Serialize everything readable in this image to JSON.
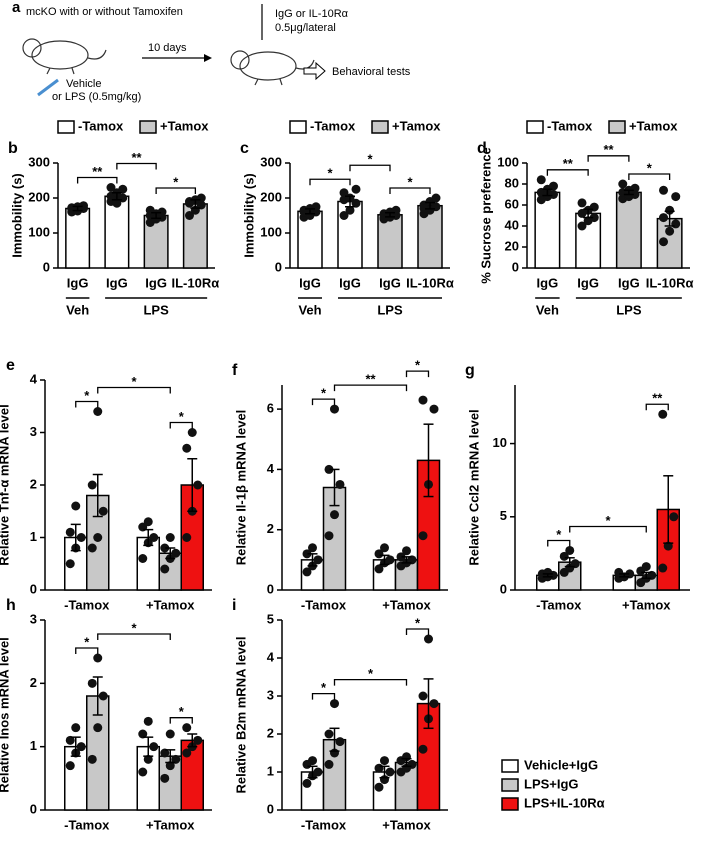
{
  "scheme": {
    "cohort": "mcKO with or without Tamoxifen",
    "treatment_1": "Vehicle",
    "treatment_2": "or LPS (0.5mg/kg)",
    "interval": "10 days",
    "injection_1": "IgG or IL-10Rα",
    "injection_2": "0.5μg/lateral",
    "outcome": "Behavioral tests"
  },
  "chart_data": [
    {
      "type": "bar",
      "label": "b",
      "ylabel": "Immobility (s)",
      "ylim": [
        0,
        300
      ],
      "yticks": [
        0,
        100,
        200,
        300
      ],
      "categories": [
        "IgG",
        "IgG",
        "IgG",
        "IL-10Rα"
      ],
      "group_labels": [
        "Veh",
        "LPS"
      ],
      "series": [
        {
          "name": "-Tamox",
          "color": "#ffffff",
          "values": [
            170,
            205,
            null,
            null
          ],
          "errors": [
            6,
            10,
            null,
            null
          ],
          "points": [
            [
              160,
              165,
              170,
              172,
              175,
              178,
              168,
              163
            ],
            [
              190,
              195,
              200,
              205,
              215,
              225,
              230,
              185
            ],
            null,
            null
          ]
        },
        {
          "name": "+Tamox",
          "color": "#c8c8c8",
          "values": [
            null,
            null,
            150,
            183
          ],
          "errors": [
            null,
            null,
            8,
            12
          ],
          "points": [
            null,
            null,
            [
              130,
              140,
              145,
              150,
              155,
              160,
              165,
              140
            ],
            [
              150,
              165,
              180,
              185,
              195,
              200,
              190
            ]
          ]
        }
      ],
      "significance": [
        {
          "from": 0,
          "to": 1,
          "label": "**"
        },
        {
          "from": 1,
          "to": 2,
          "label": "**"
        },
        {
          "from": 2,
          "to": 3,
          "label": "*"
        }
      ]
    },
    {
      "type": "bar",
      "label": "c",
      "ylabel": "Immobility (s)",
      "ylim": [
        0,
        300
      ],
      "yticks": [
        0,
        100,
        200,
        300
      ],
      "categories": [
        "IgG",
        "IgG",
        "IgG",
        "IL-10Rα"
      ],
      "group_labels": [
        "Veh",
        "LPS"
      ],
      "series": [
        {
          "name": "-Tamox",
          "color": "#ffffff",
          "values": [
            162,
            190,
            null,
            null
          ],
          "errors": [
            7,
            15,
            null,
            null
          ],
          "points": [
            [
              145,
              150,
              160,
              165,
              170,
              175,
              160
            ],
            [
              150,
              165,
              185,
              195,
              200,
              225,
              215
            ],
            null,
            null
          ]
        },
        {
          "name": "+Tamox",
          "color": "#c8c8c8",
          "values": [
            null,
            null,
            152,
            178
          ],
          "errors": [
            null,
            null,
            6,
            9
          ],
          "points": [
            null,
            null,
            [
              140,
              145,
              150,
              155,
              160,
              165,
              145
            ],
            [
              155,
              165,
              175,
              180,
              190,
              200,
              170
            ]
          ]
        }
      ],
      "significance": [
        {
          "from": 0,
          "to": 1,
          "label": "*"
        },
        {
          "from": 1,
          "to": 2,
          "label": "*"
        },
        {
          "from": 2,
          "to": 3,
          "label": "*"
        }
      ]
    },
    {
      "type": "bar",
      "label": "d",
      "ylabel": "% Sucrose preference",
      "ylim": [
        0,
        100
      ],
      "yticks": [
        0,
        20,
        40,
        60,
        80,
        100
      ],
      "categories": [
        "IgG",
        "IgG",
        "IgG",
        "IL-10Rα"
      ],
      "group_labels": [
        "Veh",
        "LPS"
      ],
      "series": [
        {
          "name": "-Tamox",
          "color": "#ffffff",
          "values": [
            72,
            52,
            null,
            null
          ],
          "errors": [
            3,
            4,
            null,
            null
          ],
          "points": [
            [
              65,
              68,
              70,
              72,
              75,
              78,
              84,
              70
            ],
            [
              40,
              45,
              48,
              52,
              55,
              58,
              62
            ],
            null,
            null
          ]
        },
        {
          "name": "+Tamox",
          "color": "#c8c8c8",
          "values": [
            null,
            null,
            72,
            47
          ],
          "errors": [
            null,
            null,
            2,
            7
          ],
          "points": [
            null,
            null,
            [
              66,
              68,
              70,
              72,
              74,
              76,
              80,
              70
            ],
            [
              25,
              35,
              42,
              48,
              55,
              68,
              74
            ]
          ]
        }
      ],
      "significance": [
        {
          "from": 0,
          "to": 1,
          "label": "**"
        },
        {
          "from": 1,
          "to": 2,
          "label": "**"
        },
        {
          "from": 2,
          "to": 3,
          "label": "*"
        }
      ]
    },
    {
      "type": "bar",
      "label": "e",
      "ylabel": "Relative Tnf-α mRNA level",
      "ylim": [
        0,
        4
      ],
      "yticks": [
        0,
        1,
        2,
        3,
        4
      ],
      "categories": [
        "-Tamox",
        "+Tamox"
      ],
      "series": [
        {
          "color": "#ffffff",
          "values": [
            1.0,
            1.0
          ],
          "errors": [
            0.25,
            0.15
          ],
          "points": [
            [
              0.5,
              0.8,
              1.0,
              1.1,
              1.6
            ],
            [
              0.6,
              0.9,
              1.0,
              1.2,
              1.3
            ]
          ]
        },
        {
          "color": "#c8c8c8",
          "values": [
            1.8,
            0.7
          ],
          "errors": [
            0.4,
            0.1
          ],
          "points": [
            [
              0.8,
              1.0,
              1.5,
              2.0,
              3.4
            ],
            [
              0.4,
              0.6,
              0.7,
              0.8,
              1.0
            ]
          ]
        },
        {
          "color": "#ee1111",
          "values": [
            null,
            2.0
          ],
          "errors": [
            null,
            0.5
          ],
          "points": [
            null,
            [
              1.0,
              1.5,
              2.0,
              2.7,
              3.0
            ]
          ]
        }
      ],
      "significance": [
        {
          "from": 0,
          "to": 1,
          "label": "*"
        },
        {
          "from": 1,
          "to": 3,
          "label": "*"
        },
        {
          "from": 3,
          "to": 4,
          "label": "*"
        }
      ]
    },
    {
      "type": "bar",
      "label": "f",
      "ylabel": "Relative Il-1β mRNA level",
      "ylim": [
        0,
        6.8
      ],
      "yticks": [
        0,
        2,
        4,
        6
      ],
      "categories": [
        "-Tamox",
        "+Tamox"
      ],
      "series": [
        {
          "color": "#ffffff",
          "values": [
            1.0,
            1.0
          ],
          "errors": [
            0.2,
            0.15
          ],
          "points": [
            [
              0.6,
              0.8,
              1.0,
              1.2,
              1.4
            ],
            [
              0.7,
              0.9,
              1.0,
              1.2,
              1.4
            ]
          ]
        },
        {
          "color": "#c8c8c8",
          "values": [
            3.4,
            1.0
          ],
          "errors": [
            0.6,
            0.1
          ],
          "points": [
            [
              1.8,
              2.5,
              3.5,
              4.0,
              6.0
            ],
            [
              0.8,
              0.9,
              1.0,
              1.1,
              1.3
            ]
          ]
        },
        {
          "color": "#ee1111",
          "values": [
            null,
            4.3
          ],
          "errors": [
            null,
            1.2
          ],
          "points": [
            null,
            [
              1.8,
              3.5,
              6.0,
              6.3
            ]
          ]
        }
      ],
      "significance": [
        {
          "from": 0,
          "to": 1,
          "label": "*"
        },
        {
          "from": 1,
          "to": 3,
          "label": "**"
        },
        {
          "from": 3,
          "to": 4,
          "label": "*"
        }
      ]
    },
    {
      "type": "bar",
      "label": "g",
      "ylabel": "Relative Ccl2 mRNA level",
      "ylim": [
        0,
        14
      ],
      "yticks": [
        0,
        5,
        10
      ],
      "categories": [
        "-Tamox",
        "+Tamox"
      ],
      "series": [
        {
          "color": "#ffffff",
          "values": [
            1.0,
            1.0
          ],
          "errors": [
            0.1,
            0.1
          ],
          "points": [
            [
              0.8,
              0.9,
              1.0,
              1.1,
              1.2
            ],
            [
              0.8,
              0.9,
              1.1,
              1.2
            ]
          ]
        },
        {
          "color": "#c8c8c8",
          "values": [
            1.9,
            1.0
          ],
          "errors": [
            0.3,
            0.2
          ],
          "points": [
            [
              1.2,
              1.5,
              1.8,
              2.3,
              2.7
            ],
            [
              0.5,
              0.8,
              1.0,
              1.3,
              1.6
            ]
          ]
        },
        {
          "color": "#ee1111",
          "values": [
            null,
            5.5
          ],
          "errors": [
            null,
            2.3
          ],
          "points": [
            null,
            [
              1.5,
              3.0,
              5.0,
              12.0
            ]
          ]
        }
      ],
      "significance": [
        {
          "from": 0,
          "to": 1,
          "label": "*"
        },
        {
          "from": 1,
          "to": 3,
          "label": "*"
        },
        {
          "from": 3,
          "to": 4,
          "label": "**"
        }
      ]
    },
    {
      "type": "bar",
      "label": "h",
      "ylabel": "Relative Inos mRNA level",
      "ylim": [
        0,
        3
      ],
      "yticks": [
        0,
        1,
        2,
        3
      ],
      "categories": [
        "-Tamox",
        "+Tamox"
      ],
      "series": [
        {
          "color": "#ffffff",
          "values": [
            1.0,
            1.0
          ],
          "errors": [
            0.15,
            0.15
          ],
          "points": [
            [
              0.7,
              0.9,
              1.0,
              1.1,
              1.3
            ],
            [
              0.6,
              0.8,
              1.0,
              1.2,
              1.4
            ]
          ]
        },
        {
          "color": "#c8c8c8",
          "values": [
            1.8,
            0.85
          ],
          "errors": [
            0.3,
            0.1
          ],
          "points": [
            [
              0.8,
              1.3,
              1.8,
              2.0,
              2.4
            ],
            [
              0.5,
              0.7,
              0.8,
              0.9,
              1.2
            ]
          ]
        },
        {
          "color": "#ee1111",
          "values": [
            null,
            1.1
          ],
          "errors": [
            null,
            0.1
          ],
          "points": [
            null,
            [
              0.9,
              1.0,
              1.1,
              1.3
            ]
          ]
        }
      ],
      "significance": [
        {
          "from": 0,
          "to": 1,
          "label": "*"
        },
        {
          "from": 1,
          "to": 3,
          "label": "*"
        },
        {
          "from": 3,
          "to": 4,
          "label": "*"
        }
      ]
    },
    {
      "type": "bar",
      "label": "i",
      "ylabel": "Relative B2m mRNA level",
      "ylim": [
        0,
        5
      ],
      "yticks": [
        0,
        1,
        2,
        3,
        4,
        5
      ],
      "categories": [
        "-Tamox",
        "+Tamox"
      ],
      "series": [
        {
          "color": "#ffffff",
          "values": [
            1.0,
            1.0
          ],
          "errors": [
            0.15,
            0.15
          ],
          "points": [
            [
              0.7,
              0.9,
              1.0,
              1.2,
              1.3
            ],
            [
              0.6,
              0.8,
              1.0,
              1.1,
              1.3
            ]
          ]
        },
        {
          "color": "#c8c8c8",
          "values": [
            1.85,
            1.25
          ],
          "errors": [
            0.3,
            0.1
          ],
          "points": [
            [
              1.2,
              1.5,
              1.8,
              2.0,
              2.8
            ],
            [
              1.0,
              1.1,
              1.2,
              1.3,
              1.4
            ]
          ]
        },
        {
          "color": "#ee1111",
          "values": [
            null,
            2.8
          ],
          "errors": [
            null,
            0.65
          ],
          "points": [
            null,
            [
              1.6,
              2.4,
              2.8,
              3.0,
              4.5
            ]
          ]
        }
      ],
      "significance": [
        {
          "from": 0,
          "to": 1,
          "label": "*"
        },
        {
          "from": 1,
          "to": 3,
          "label": "*"
        },
        {
          "from": 3,
          "to": 4,
          "label": "*"
        }
      ]
    }
  ],
  "legend": [
    {
      "name": "Vehicle+IgG",
      "color": "#ffffff"
    },
    {
      "name": "LPS+IgG",
      "color": "#c8c8c8"
    },
    {
      "name": "LPS+IL-10Rα",
      "color": "#ee1111"
    }
  ]
}
